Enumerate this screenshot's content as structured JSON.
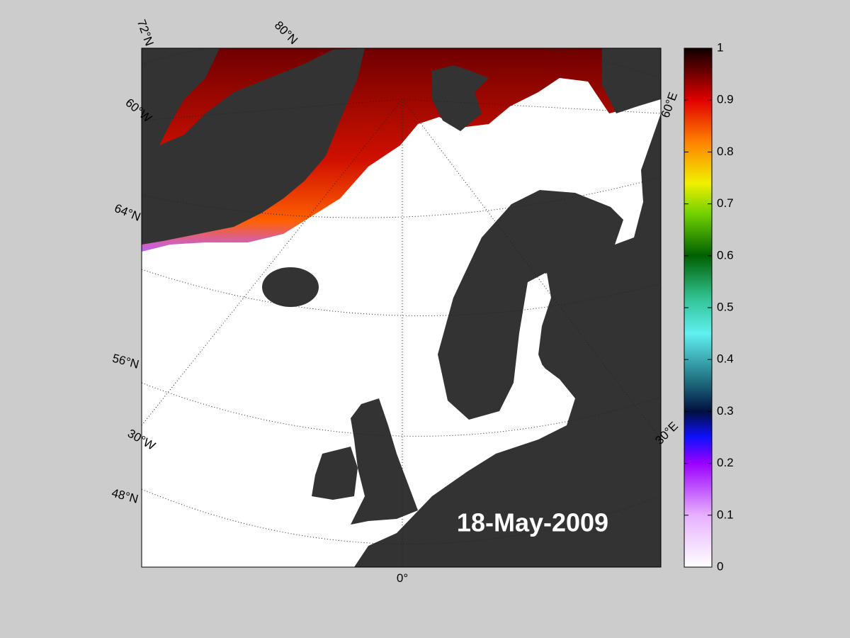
{
  "map": {
    "date_label": "18-May-2009",
    "grid_labels": [
      "72°N",
      "80°N",
      "60°W",
      "64°N",
      "56°N",
      "30°W",
      "48°N",
      "0°",
      "30°E",
      "60°E"
    ]
  },
  "colorbar": {
    "lim": [
      0,
      1
    ],
    "ticks": [
      0,
      0.1,
      0.2,
      0.3,
      0.4,
      0.5,
      0.6,
      0.7,
      0.8,
      0.9,
      1
    ]
  }
}
